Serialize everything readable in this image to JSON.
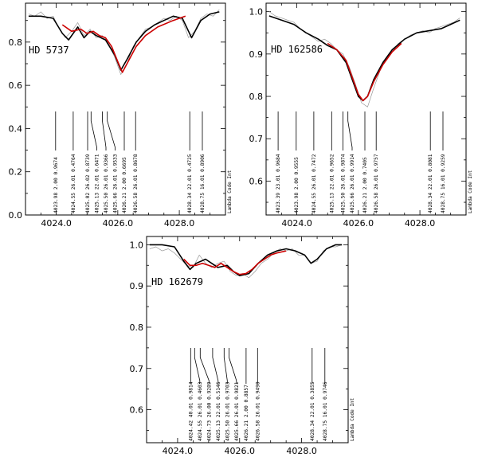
{
  "chart_data": [
    {
      "type": "line",
      "star_label": "HD 5737",
      "side_label": "Lambda Code Int",
      "xlim": [
        4023.0,
        4029.5
      ],
      "ylim": [
        0.0,
        0.98
      ],
      "xticks": [
        4024.0,
        4026.0,
        4028.0
      ],
      "xtick_labels": [
        "4024.0",
        "4026.0",
        "4028.0"
      ],
      "yticks": [
        0.0,
        0.2,
        0.4,
        0.6,
        0.8
      ],
      "ytick_labels": [
        "0.0",
        "0.2",
        "0.4",
        "0.6",
        "0.8"
      ],
      "series": [
        {
          "style": "observed",
          "color": "#000000",
          "x": [
            4023.1,
            4023.5,
            4023.9,
            4024.2,
            4024.4,
            4024.7,
            4024.9,
            4025.1,
            4025.3,
            4025.6,
            4025.9,
            4026.1,
            4026.3,
            4026.6,
            4026.9,
            4027.2,
            4027.5,
            4027.8,
            4028.1,
            4028.4,
            4028.7,
            4029.0,
            4029.3
          ],
          "y": [
            0.92,
            0.92,
            0.91,
            0.84,
            0.81,
            0.87,
            0.82,
            0.85,
            0.83,
            0.81,
            0.74,
            0.67,
            0.72,
            0.8,
            0.85,
            0.88,
            0.9,
            0.92,
            0.91,
            0.82,
            0.9,
            0.93,
            0.94
          ]
        },
        {
          "style": "observed-noisy",
          "color": "#999999",
          "x": [
            4023.1,
            4023.3,
            4023.5,
            4023.7,
            4023.9,
            4024.1,
            4024.3,
            4024.5,
            4024.7,
            4024.9,
            4025.1,
            4025.3,
            4025.5,
            4025.7,
            4025.9,
            4026.1,
            4026.3,
            4026.5,
            4026.7,
            4026.9,
            4027.1,
            4027.3,
            4027.5,
            4027.7,
            4027.9,
            4028.1,
            4028.3,
            4028.5,
            4028.7,
            4028.9,
            4029.1,
            4029.3
          ],
          "y": [
            0.93,
            0.92,
            0.94,
            0.91,
            0.92,
            0.86,
            0.82,
            0.85,
            0.89,
            0.83,
            0.86,
            0.82,
            0.83,
            0.79,
            0.73,
            0.65,
            0.7,
            0.78,
            0.82,
            0.86,
            0.87,
            0.89,
            0.91,
            0.9,
            0.92,
            0.9,
            0.82,
            0.85,
            0.91,
            0.93,
            0.92,
            0.95
          ]
        },
        {
          "style": "model",
          "color": "#cc0000",
          "x": [
            4024.2,
            4024.5,
            4024.8,
            4025.0,
            4025.2,
            4025.4,
            4025.6,
            4025.8,
            4026.0,
            4026.15,
            4026.3,
            4026.6,
            4026.9,
            4027.3,
            4027.8,
            4028.2
          ],
          "y": [
            0.88,
            0.85,
            0.86,
            0.84,
            0.85,
            0.83,
            0.82,
            0.78,
            0.71,
            0.66,
            0.7,
            0.78,
            0.83,
            0.87,
            0.9,
            0.92
          ]
        }
      ],
      "line_ids": [
        {
          "wavelength": 4023.98,
          "species": "2.00",
          "strength": "0.9674"
        },
        {
          "wavelength": 4024.55,
          "species": "26.01",
          "strength": "0.4764"
        },
        {
          "wavelength": 4025.02,
          "species": "26.02",
          "strength": "0.8739"
        },
        {
          "wavelength": 4025.13,
          "species": "22.01",
          "strength": "0.6471"
        },
        {
          "wavelength": 4025.5,
          "species": "26.01",
          "strength": "0.9366"
        },
        {
          "wavelength": 4025.66,
          "species": "26.01",
          "strength": "0.9533"
        },
        {
          "wavelength": 4026.21,
          "species": "2.00",
          "strength": "0.6695"
        },
        {
          "wavelength": 4026.58,
          "species": "26.01",
          "strength": "0.8678"
        },
        {
          "wavelength": 4028.34,
          "species": "22.01",
          "strength": "0.4725"
        },
        {
          "wavelength": 4028.75,
          "species": "16.01",
          "strength": "0.8906"
        }
      ]
    },
    {
      "type": "line",
      "star_label": "HD 162586",
      "side_label": "Lambda Code Int",
      "xlim": [
        4023.0,
        4029.5
      ],
      "ylim": [
        0.52,
        1.02
      ],
      "xticks": [
        4024.0,
        4026.0,
        4028.0
      ],
      "xtick_labels": [
        "4024.0",
        "4026.0",
        "4028.0"
      ],
      "yticks": [
        0.6,
        0.7,
        0.8,
        0.9,
        1.0
      ],
      "ytick_labels": [
        "0.6",
        "0.7",
        "0.8",
        "0.9",
        "1.0"
      ],
      "series": [
        {
          "style": "observed",
          "color": "#000000",
          "x": [
            4023.1,
            4023.5,
            4023.9,
            4024.3,
            4024.7,
            4025.0,
            4025.3,
            4025.6,
            4025.8,
            4026.0,
            4026.15,
            4026.3,
            4026.5,
            4026.8,
            4027.1,
            4027.5,
            4027.9,
            4028.3,
            4028.7,
            4029.0,
            4029.3
          ],
          "y": [
            0.99,
            0.98,
            0.97,
            0.95,
            0.935,
            0.92,
            0.91,
            0.88,
            0.84,
            0.8,
            0.79,
            0.8,
            0.84,
            0.88,
            0.91,
            0.935,
            0.95,
            0.955,
            0.96,
            0.97,
            0.98
          ]
        },
        {
          "style": "observed-noisy",
          "color": "#999999",
          "x": [
            4023.1,
            4023.3,
            4023.5,
            4023.7,
            4023.9,
            4024.1,
            4024.3,
            4024.5,
            4024.7,
            4024.9,
            4025.1,
            4025.3,
            4025.5,
            4025.7,
            4025.9,
            4026.1,
            4026.3,
            4026.5,
            4026.7,
            4026.9,
            4027.1,
            4027.3,
            4027.5,
            4027.7,
            4027.9,
            4028.1,
            4028.3,
            4028.5,
            4028.7,
            4028.9,
            4029.1,
            4029.3
          ],
          "y": [
            1.0,
            0.99,
            0.985,
            0.98,
            0.975,
            0.96,
            0.95,
            0.94,
            0.93,
            0.935,
            0.925,
            0.91,
            0.9,
            0.87,
            0.83,
            0.785,
            0.775,
            0.82,
            0.86,
            0.89,
            0.905,
            0.925,
            0.935,
            0.945,
            0.95,
            0.955,
            0.95,
            0.96,
            0.965,
            0.97,
            0.975,
            0.985
          ]
        },
        {
          "style": "model",
          "color": "#cc0000",
          "x": [
            4025.0,
            4025.3,
            4025.6,
            4025.8,
            4026.0,
            4026.15,
            4026.3,
            4026.5,
            4026.8,
            4027.1,
            4027.4
          ],
          "y": [
            0.925,
            0.91,
            0.885,
            0.845,
            0.805,
            0.79,
            0.8,
            0.835,
            0.875,
            0.905,
            0.925
          ]
        }
      ],
      "line_ids": [
        {
          "wavelength": 4023.39,
          "species": "23.01",
          "strength": "0.9684"
        },
        {
          "wavelength": 4023.98,
          "species": "2.00",
          "strength": "0.9555"
        },
        {
          "wavelength": 4024.55,
          "species": "26.01",
          "strength": "0.7472"
        },
        {
          "wavelength": 4025.13,
          "species": "22.01",
          "strength": "0.9652"
        },
        {
          "wavelength": 4025.5,
          "species": "26.01",
          "strength": "0.9874"
        },
        {
          "wavelength": 4025.66,
          "species": "26.01",
          "strength": "0.9914"
        },
        {
          "wavelength": 4026.21,
          "species": "2.00",
          "strength": "0.7405"
        },
        {
          "wavelength": 4026.58,
          "species": "26.01",
          "strength": "0.9757"
        },
        {
          "wavelength": 4028.34,
          "species": "22.01",
          "strength": "0.8081"
        },
        {
          "wavelength": 4028.75,
          "species": "16.01",
          "strength": "0.9259"
        }
      ]
    },
    {
      "type": "line",
      "star_label": "HD 162679",
      "side_label": "Lambda Code Int",
      "xlim": [
        4023.0,
        4029.5
      ],
      "ylim": [
        0.52,
        1.02
      ],
      "xticks": [
        4024.0,
        4026.0,
        4028.0
      ],
      "xtick_labels": [
        "4024.0",
        "4026.0",
        "4028.0"
      ],
      "yticks": [
        0.6,
        0.7,
        0.8,
        0.9,
        1.0
      ],
      "ytick_labels": [
        "0.6",
        "0.7",
        "0.8",
        "0.9",
        "1.0"
      ],
      "series": [
        {
          "style": "observed",
          "color": "#000000",
          "x": [
            4023.1,
            4023.5,
            4023.9,
            4024.2,
            4024.4,
            4024.6,
            4024.9,
            4025.1,
            4025.3,
            4025.6,
            4025.8,
            4026.0,
            4026.3,
            4026.6,
            4026.9,
            4027.2,
            4027.5,
            4027.8,
            4028.1,
            4028.3,
            4028.5,
            4028.8,
            4029.1,
            4029.3
          ],
          "y": [
            1.0,
            1.0,
            0.995,
            0.96,
            0.94,
            0.955,
            0.965,
            0.955,
            0.945,
            0.95,
            0.935,
            0.925,
            0.93,
            0.955,
            0.975,
            0.985,
            0.99,
            0.985,
            0.975,
            0.955,
            0.965,
            0.99,
            1.0,
            1.0
          ]
        },
        {
          "style": "observed-noisy",
          "color": "#999999",
          "x": [
            4023.1,
            4023.3,
            4023.5,
            4023.7,
            4023.9,
            4024.1,
            4024.3,
            4024.5,
            4024.7,
            4024.9,
            4025.1,
            4025.3,
            4025.5,
            4025.7,
            4025.9,
            4026.1,
            4026.3,
            4026.5,
            4026.7,
            4026.9,
            4027.1,
            4027.3,
            4027.5,
            4027.7,
            4027.9,
            4028.1,
            4028.3,
            4028.5,
            4028.7,
            4028.9,
            4029.1,
            4029.3
          ],
          "y": [
            0.99,
            0.995,
            0.985,
            0.99,
            0.98,
            0.965,
            0.95,
            0.945,
            0.975,
            0.955,
            0.945,
            0.955,
            0.96,
            0.935,
            0.925,
            0.93,
            0.92,
            0.935,
            0.955,
            0.965,
            0.98,
            0.99,
            0.985,
            0.99,
            0.975,
            0.975,
            0.955,
            0.96,
            0.985,
            0.995,
            0.995,
            1.0
          ]
        },
        {
          "style": "model",
          "color": "#cc0000",
          "x": [
            4024.2,
            4024.4,
            4024.6,
            4024.8,
            4025.0,
            4025.2,
            4025.4,
            4025.6,
            4025.8,
            4026.0,
            4026.2,
            4026.4,
            4026.6,
            4026.8,
            4027.0,
            4027.2,
            4027.5
          ],
          "y": [
            0.965,
            0.95,
            0.95,
            0.955,
            0.95,
            0.945,
            0.955,
            0.945,
            0.935,
            0.928,
            0.93,
            0.94,
            0.955,
            0.965,
            0.975,
            0.98,
            0.985
          ]
        }
      ],
      "line_ids": [
        {
          "wavelength": 4024.42,
          "species": "40.01",
          "strength": "0.9814"
        },
        {
          "wavelength": 4024.55,
          "species": "26.01",
          "strength": "0.4603"
        },
        {
          "wavelength": 4024.73,
          "species": "26.00",
          "strength": "0.9289"
        },
        {
          "wavelength": 4025.13,
          "species": "22.01",
          "strength": "0.5146"
        },
        {
          "wavelength": 4025.5,
          "species": "26.01",
          "strength": "0.9703"
        },
        {
          "wavelength": 4025.66,
          "species": "26.01",
          "strength": "0.9821"
        },
        {
          "wavelength": 4026.21,
          "species": "2.00",
          "strength": "0.8857"
        },
        {
          "wavelength": 4026.58,
          "species": "26.01",
          "strength": "0.9490"
        },
        {
          "wavelength": 4028.34,
          "species": "22.01",
          "strength": "0.3855"
        },
        {
          "wavelength": 4028.75,
          "species": "16.01",
          "strength": "0.9746"
        }
      ]
    }
  ]
}
